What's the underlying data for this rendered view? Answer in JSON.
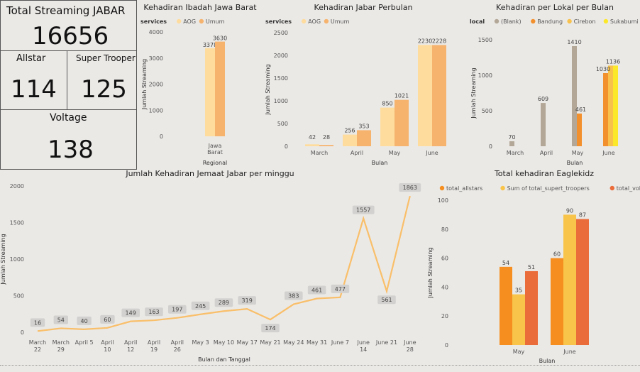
{
  "kpi": {
    "total": {
      "title": "Total Streaming JABAR",
      "value": "16656"
    },
    "allstar": {
      "title": "Allstar",
      "value": "114"
    },
    "super": {
      "title": "Super Trooper",
      "value": "125"
    },
    "voltage": {
      "title": "Voltage",
      "value": "138"
    }
  },
  "colors": {
    "aog": "#fedc9e",
    "umum": "#f6b36e",
    "blank": "#b3a797",
    "bandung": "#f3902e",
    "cirebon": "#f7c14b",
    "sukabumi": "#fce82a",
    "allstars": "#f58e1e",
    "troopers": "#f9c44a",
    "voltage": "#ea6c3a",
    "line": "#f9bf6a",
    "dlbox": "#d3d1cf"
  },
  "chart_data": [
    {
      "id": "c1",
      "type": "bar",
      "title": "Kehadiran Ibadah Jawa Barat",
      "legend_title": "services",
      "xlabel": "Regional",
      "ylabel": "Jumlah Streaming",
      "categories": [
        "Jawa Barat"
      ],
      "category_lines": [
        [
          "Jawa",
          "Barat"
        ]
      ],
      "ylim": [
        0,
        4000
      ],
      "yticks": [
        0,
        1000,
        2000,
        3000,
        4000
      ],
      "series": [
        {
          "name": "AOG",
          "values": [
            3378
          ]
        },
        {
          "name": "Umum",
          "values": [
            3630
          ]
        }
      ]
    },
    {
      "id": "c2",
      "type": "bar",
      "title": "Kehadiran Jabar Perbulan",
      "legend_title": "services",
      "xlabel": "Bulan",
      "ylabel": "Jumlah Streaming",
      "categories": [
        "March",
        "April",
        "May",
        "June"
      ],
      "ylim": [
        0,
        2500
      ],
      "yticks": [
        0,
        500,
        1000,
        1500,
        2000,
        2500
      ],
      "series": [
        {
          "name": "AOG",
          "values": [
            42,
            256,
            850,
            2230
          ]
        },
        {
          "name": "Umum",
          "values": [
            28,
            353,
            1021,
            2228
          ]
        }
      ]
    },
    {
      "id": "c3",
      "type": "bar",
      "title": "Kehadiran per Lokal per Bulan",
      "legend_title": "local",
      "xlabel": "Bulan",
      "ylabel": "Jumlah Streaming",
      "categories": [
        "March",
        "April",
        "May",
        "June"
      ],
      "ylim": [
        0,
        1500
      ],
      "yticks": [
        0,
        500,
        1000,
        1500
      ],
      "series": [
        {
          "name": "(Blank)",
          "values": [
            70,
            609,
            1410,
            null
          ]
        },
        {
          "name": "Bandung",
          "values": [
            null,
            null,
            461,
            1030
          ]
        },
        {
          "name": "Cirebon",
          "values": [
            null,
            null,
            null,
            1136
          ]
        },
        {
          "name": "Sukabumi",
          "values": [
            null,
            null,
            null,
            1136
          ]
        }
      ],
      "data_labels": [
        [
          "70"
        ],
        [
          "609"
        ],
        [
          "1410",
          "461"
        ],
        [
          "1030",
          "1136"
        ]
      ]
    },
    {
      "id": "c4",
      "type": "line",
      "title": "Jumlah Kehadiran Jemaat Jabar per minggu",
      "xlabel": "Bulan dan Tanggal",
      "ylabel": "Jumlah Streaming",
      "categories": [
        "March 22",
        "March 29",
        "April 5",
        "April 10",
        "April 12",
        "April 19",
        "April 26",
        "May 3",
        "May 10",
        "May 17",
        "May 21",
        "May 24",
        "May 31",
        "June 7",
        "June 14",
        "June 21",
        "June 28"
      ],
      "category_lines": [
        [
          "March",
          "22"
        ],
        [
          "March",
          "29"
        ],
        [
          "April 5"
        ],
        [
          "April",
          "10"
        ],
        [
          "April",
          "12"
        ],
        [
          "April",
          "19"
        ],
        [
          "April",
          "26"
        ],
        [
          "May 3"
        ],
        [
          "May 10"
        ],
        [
          "May 17"
        ],
        [
          "May 21"
        ],
        [
          "May 24"
        ],
        [
          "May 31"
        ],
        [
          "June 7"
        ],
        [
          "June",
          "14"
        ],
        [
          "June 21"
        ],
        [
          "June",
          "28"
        ]
      ],
      "values": [
        16,
        54,
        40,
        60,
        149,
        163,
        197,
        245,
        289,
        319,
        174,
        383,
        461,
        477,
        1557,
        561,
        1863
      ],
      "ylim": [
        0,
        2000
      ],
      "yticks": [
        0,
        500,
        1000,
        1500,
        2000
      ]
    },
    {
      "id": "c5",
      "type": "bar",
      "title": "Total kehadiran Eaglekidz",
      "xlabel": "Bulan",
      "ylabel": "Jumlah Streaming",
      "categories": [
        "May",
        "June"
      ],
      "ylim": [
        0,
        100
      ],
      "yticks": [
        0,
        20,
        40,
        60,
        80,
        100
      ],
      "series": [
        {
          "name": "total_allstars",
          "values": [
            54,
            60
          ]
        },
        {
          "name": "Sum of total_supert_troopers",
          "values": [
            35,
            90
          ]
        },
        {
          "name": "total_voltage",
          "values": [
            51,
            87
          ]
        }
      ]
    }
  ]
}
